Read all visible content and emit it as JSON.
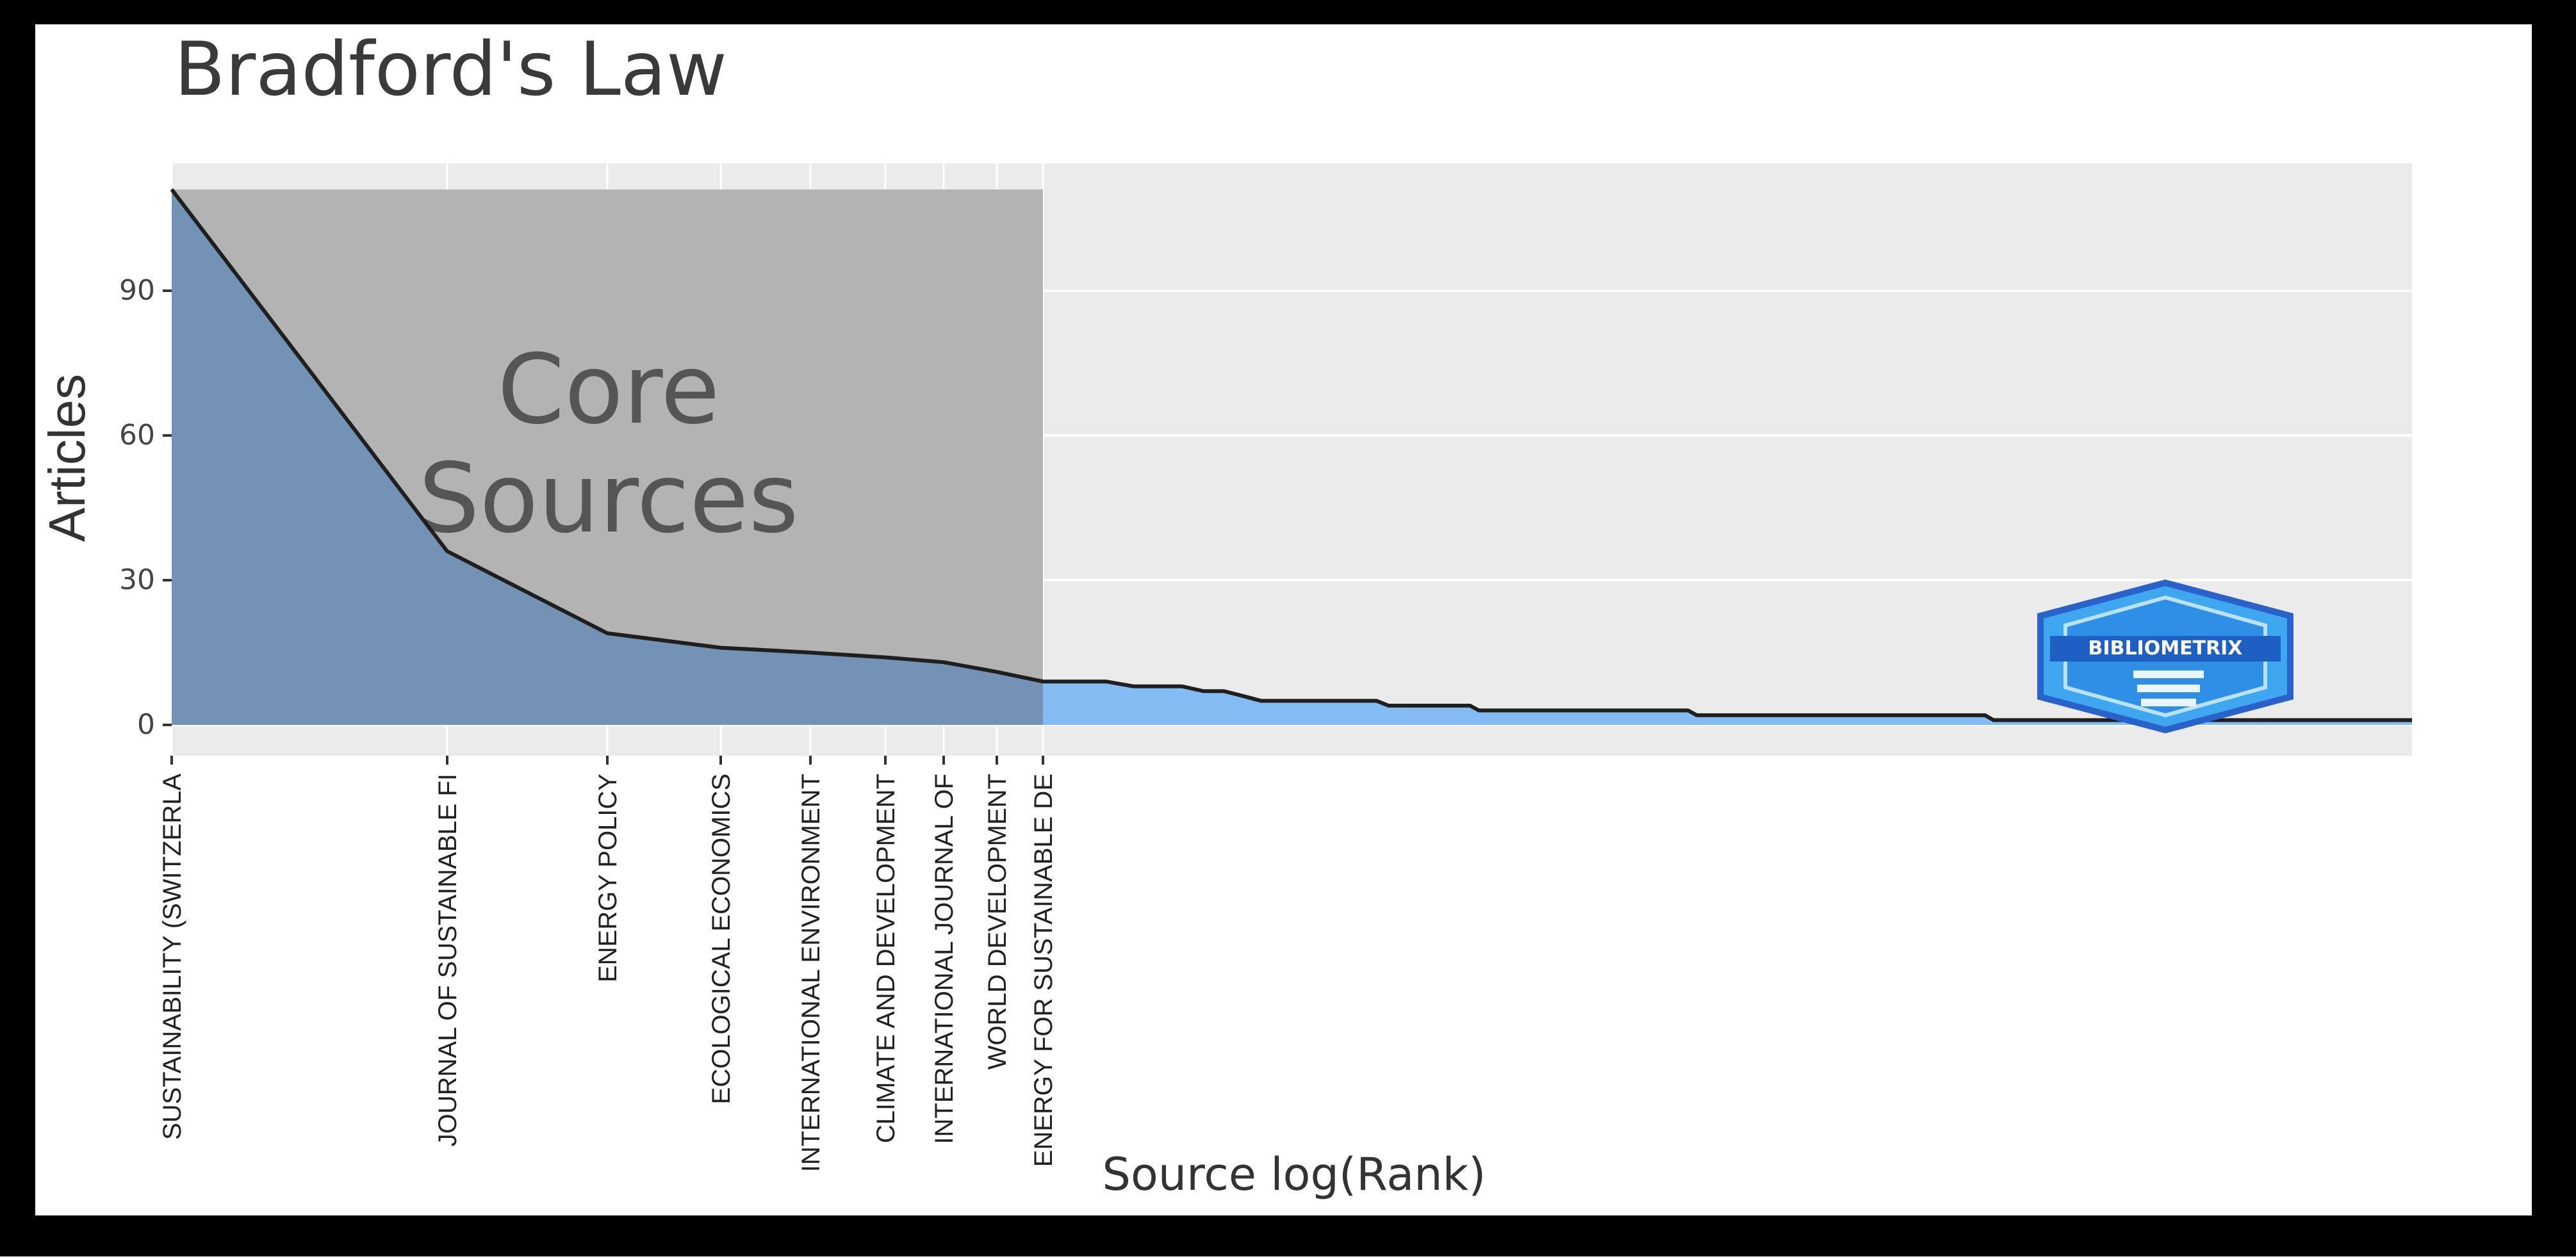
{
  "chart_data": {
    "type": "area",
    "title": "Bradford's Law",
    "xlabel": "Source log(Rank)",
    "ylabel": "Articles",
    "x_scale": "log",
    "ylim": [
      0,
      112
    ],
    "y_ticks": [
      0,
      30,
      60,
      90
    ],
    "grid": true,
    "core_zone": {
      "label_line1": "Core",
      "label_line2": "Sources",
      "last_rank": 9,
      "height_articles": 111
    },
    "labeled_sources": [
      {
        "rank": 1,
        "label": "SUSTAINABILITY (SWITZERLA",
        "articles": 111
      },
      {
        "rank": 2,
        "label": "JOURNAL OF SUSTAINABLE FI",
        "articles": 36
      },
      {
        "rank": 3,
        "label": "ENERGY POLICY",
        "articles": 19
      },
      {
        "rank": 4,
        "label": "ECOLOGICAL ECONOMICS",
        "articles": 16
      },
      {
        "rank": 5,
        "label": "INTERNATIONAL ENVIRONMENT",
        "articles": 15
      },
      {
        "rank": 6,
        "label": "CLIMATE AND DEVELOPMENT",
        "articles": 14
      },
      {
        "rank": 7,
        "label": "INTERNATIONAL JOURNAL OF",
        "articles": 13
      },
      {
        "rank": 8,
        "label": "WORLD DEVELOPMENT",
        "articles": 11
      },
      {
        "rank": 9,
        "label": "ENERGY FOR SUSTAINABLE DE",
        "articles": 9
      }
    ],
    "tail": [
      {
        "rank": 9,
        "articles": 9
      },
      {
        "rank": 11,
        "articles": 9
      },
      {
        "rank": 12,
        "articles": 8
      },
      {
        "rank": 14,
        "articles": 8
      },
      {
        "rank": 15,
        "articles": 7
      },
      {
        "rank": 16,
        "articles": 7
      },
      {
        "rank": 17,
        "articles": 6
      },
      {
        "rank": 18,
        "articles": 5
      },
      {
        "rank": 26,
        "articles": 5
      },
      {
        "rank": 27,
        "articles": 4
      },
      {
        "rank": 35,
        "articles": 4
      },
      {
        "rank": 36,
        "articles": 3
      },
      {
        "rank": 70,
        "articles": 3
      },
      {
        "rank": 72,
        "articles": 2
      },
      {
        "rank": 180,
        "articles": 2
      },
      {
        "rank": 185,
        "articles": 1
      },
      {
        "rank": 700,
        "articles": 1
      }
    ],
    "colors": {
      "core_fill": "#6e8fb6",
      "tail_fill": "#84bbf2",
      "core_zone": "#b3b3b3",
      "panel_bg": "#ebebeb",
      "line": "#1f1f1f"
    }
  },
  "watermark": {
    "text": "BIBLIOMETRIX",
    "icon": "bibliometrix-logo-icon"
  }
}
